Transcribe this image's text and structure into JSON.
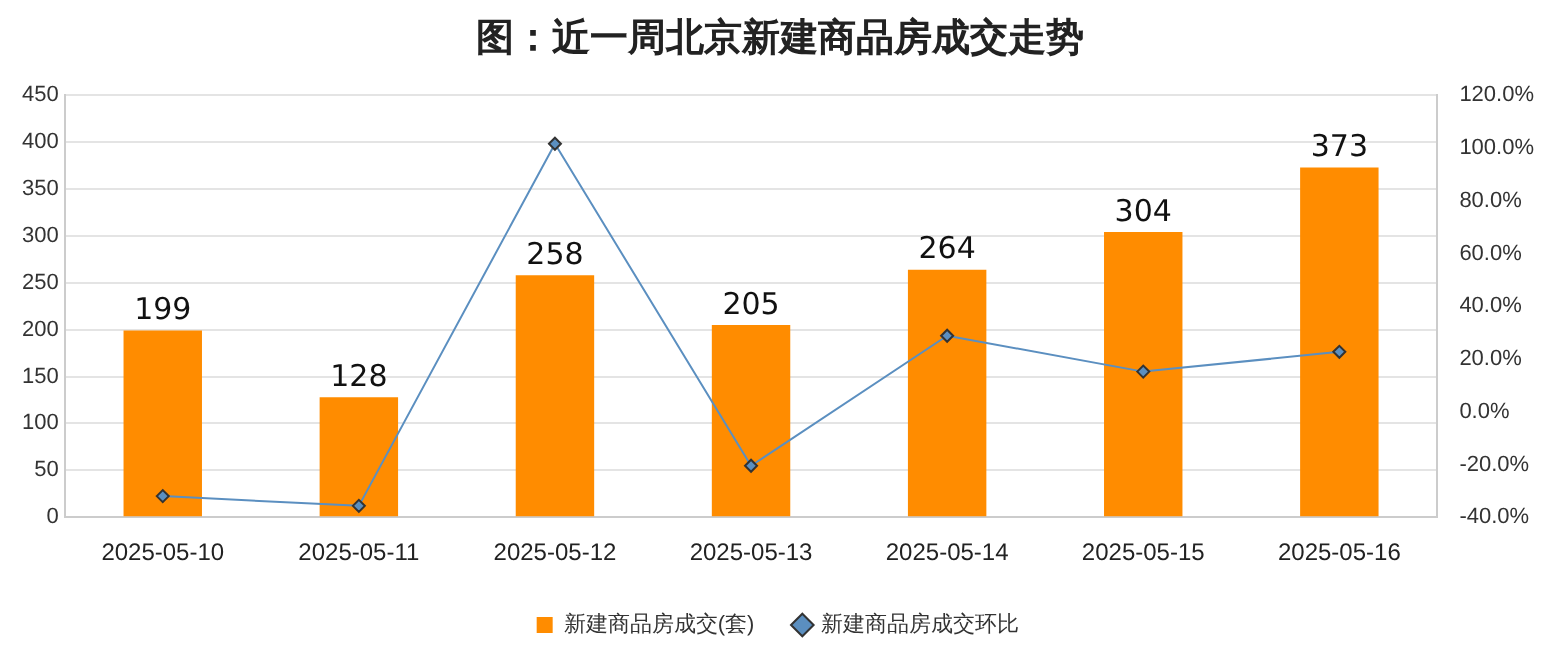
{
  "chart_data": {
    "type": "bar",
    "title": "图：近一周北京新建商品房成交走势",
    "categories": [
      "2025-05-10",
      "2025-05-11",
      "2025-05-12",
      "2025-05-13",
      "2025-05-14",
      "2025-05-15",
      "2025-05-16"
    ],
    "series": [
      {
        "name": "新建商品房成交(套)",
        "color": "#ff8c00",
        "values": [
          199,
          128,
          258,
          205,
          264,
          304,
          373
        ],
        "value_labels": [
          "199",
          "128",
          "258",
          "205",
          "264",
          "304",
          "373"
        ]
      },
      {
        "name": "新建商品房成交环比",
        "type": "line",
        "axis": "y2",
        "color": "#5b8fc0",
        "marker": "diamond",
        "values": [
          -32,
          -35.7,
          101.6,
          -20.5,
          28.8,
          15.2,
          22.7
        ]
      }
    ],
    "ylim": [
      0,
      450
    ],
    "yticks": [
      0,
      50,
      100,
      150,
      200,
      250,
      300,
      350,
      400,
      450
    ],
    "y2lim": [
      -40,
      120
    ],
    "y2ticks": [
      {
        "value": -40,
        "label": "-40.0%"
      },
      {
        "value": -20,
        "label": "-20.0%"
      },
      {
        "value": 0,
        "label": "0.0%"
      },
      {
        "value": 20,
        "label": "20.0%"
      },
      {
        "value": 40,
        "label": "40.0%"
      },
      {
        "value": 60,
        "label": "60.0%"
      },
      {
        "value": 80,
        "label": "80.0%"
      },
      {
        "value": 100,
        "label": "100.0%"
      },
      {
        "value": 120,
        "label": "120.0%"
      }
    ],
    "grid": "y",
    "legend": "bottom"
  }
}
